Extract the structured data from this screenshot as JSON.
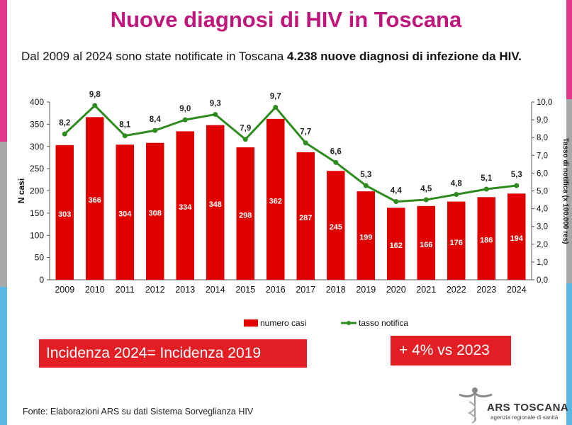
{
  "header": {
    "title": "Nuove diagnosi di HIV in Toscana",
    "subtitle_prefix": "Dal 2009 al 2024 sono state notificate in Toscana ",
    "subtitle_bold": "4.238 nuove diagnosi di infezione da HIV."
  },
  "chart_data": {
    "type": "bar+line",
    "categories": [
      "2009",
      "2010",
      "2011",
      "2012",
      "2013",
      "2014",
      "2015",
      "2016",
      "2017",
      "2018",
      "2019",
      "2020",
      "2021",
      "2022",
      "2023",
      "2024"
    ],
    "series": [
      {
        "name": "numero casi",
        "type": "bar",
        "axis": "left",
        "color": "#e10000",
        "values": [
          303,
          366,
          304,
          308,
          334,
          348,
          298,
          362,
          287,
          245,
          199,
          162,
          166,
          176,
          186,
          194
        ]
      },
      {
        "name": "tasso notifica",
        "type": "line",
        "axis": "right",
        "color": "#2e8b1e",
        "values": [
          8.2,
          9.8,
          8.1,
          8.4,
          9.0,
          9.3,
          7.9,
          9.7,
          7.7,
          6.6,
          5.3,
          4.4,
          4.5,
          4.8,
          5.1,
          5.3
        ],
        "labels": [
          "8,2",
          "9,8",
          "8,1",
          "8,4",
          "9,0",
          "9,3",
          "7,9",
          "9,7",
          "7,7",
          "6,6",
          "5,3",
          "4,4",
          "4,5",
          "4,8",
          "5,1",
          "5,3"
        ]
      }
    ],
    "ylabel": "N casi",
    "ylim": [
      0,
      400
    ],
    "yticks": [
      "0",
      "50",
      "100",
      "150",
      "200",
      "250",
      "300",
      "350",
      "400"
    ],
    "y2label": "Tasso di notifica (x 100.000 res)",
    "y2lim": [
      0,
      10
    ],
    "y2ticks": [
      "0,0",
      "1,0",
      "2,0",
      "3,0",
      "4,0",
      "5,0",
      "6,0",
      "7,0",
      "8,0",
      "9,0",
      "10,0"
    ],
    "legend": [
      "numero casi",
      "tasso notifica"
    ],
    "legend_position": "bottom"
  },
  "boxes": {
    "incidenza": "Incidenza 2024= Incidenza 2019",
    "variazione": "+ 4% vs 2023"
  },
  "footer": {
    "source": "Fonte: Elaborazioni ARS su dati Sistema Sorveglianza HIV"
  },
  "logo": {
    "name": "ARS TOSCANA",
    "tagline": "agenzia regionale di sanità"
  },
  "colors": {
    "title": "#c0157a",
    "bar": "#e10000",
    "line": "#2e8b1e",
    "box": "#e31e24",
    "edge_pink": "#e4388c",
    "edge_blue": "#59b8e4",
    "edge_grey": "#a7a9ab"
  }
}
